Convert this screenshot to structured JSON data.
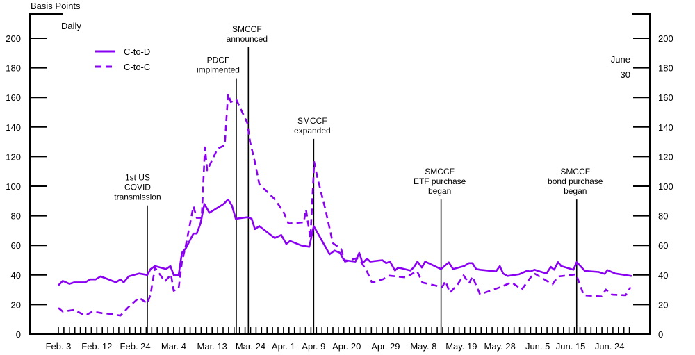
{
  "chart_data": {
    "type": "line",
    "ylabel": "Basis Points",
    "subtitle": "Daily",
    "corner_note": [
      "June",
      "30"
    ],
    "x_unit": "trading days since Feb. 3",
    "xlim": [
      0,
      104
    ],
    "ylim": [
      0,
      200
    ],
    "yticks": [
      0,
      20,
      40,
      60,
      80,
      100,
      120,
      140,
      160,
      180,
      200
    ],
    "grid": false,
    "legend_position": "top-left",
    "xtick_labels": [
      {
        "label": "Feb. 3",
        "x": 0
      },
      {
        "label": "Feb. 12",
        "x": 7
      },
      {
        "label": "Feb. 24",
        "x": 14
      },
      {
        "label": "Mar. 4",
        "x": 21
      },
      {
        "label": "Mar. 13",
        "x": 28
      },
      {
        "label": "Mar. 24",
        "x": 35
      },
      {
        "label": "Apr. 1",
        "x": 41
      },
      {
        "label": "Apr. 9",
        "x": 46.5
      },
      {
        "label": "Apr. 20",
        "x": 52.5
      },
      {
        "label": "Apr. 29",
        "x": 59.6
      },
      {
        "label": "May. 8",
        "x": 66.5
      },
      {
        "label": "May. 19",
        "x": 73.4
      },
      {
        "label": "May. 28",
        "x": 80.4
      },
      {
        "label": "Jun. 5",
        "x": 87.3
      },
      {
        "label": "Jun. 15",
        "x": 93.3
      },
      {
        "label": "Jun. 24",
        "x": 100.4
      }
    ],
    "minor_tick_count": 105,
    "colors": {
      "series": "#8A00F0",
      "axis": "#000000"
    },
    "series": [
      {
        "name": "C-to-D",
        "style": "solid",
        "points": [
          [
            0,
            33
          ],
          [
            0.8,
            36
          ],
          [
            2.0,
            34
          ],
          [
            2.9,
            35
          ],
          [
            4.9,
            35
          ],
          [
            5.8,
            37
          ],
          [
            6.8,
            37
          ],
          [
            7.7,
            39
          ],
          [
            10.5,
            35
          ],
          [
            11.3,
            37
          ],
          [
            11.9,
            35
          ],
          [
            12.8,
            39
          ],
          [
            14.7,
            41
          ],
          [
            16.2,
            40
          ],
          [
            16.8,
            44
          ],
          [
            17.6,
            46
          ],
          [
            19.6,
            44
          ],
          [
            20.4,
            46
          ],
          [
            21.0,
            40
          ],
          [
            21.9,
            40
          ],
          [
            22.5,
            55
          ],
          [
            23.2,
            58
          ],
          [
            24.6,
            68
          ],
          [
            25.2,
            68
          ],
          [
            25.9,
            75
          ],
          [
            26.6,
            88
          ],
          [
            27.5,
            82
          ],
          [
            30.1,
            88
          ],
          [
            30.9,
            91
          ],
          [
            31.6,
            87
          ],
          [
            32.3,
            78
          ],
          [
            34.4,
            79
          ],
          [
            35.2,
            78
          ],
          [
            35.8,
            71
          ],
          [
            36.6,
            73
          ],
          [
            39.4,
            65
          ],
          [
            40.6,
            67
          ],
          [
            41.5,
            61
          ],
          [
            42.2,
            63
          ],
          [
            44.2,
            60
          ],
          [
            45.7,
            59
          ],
          [
            46.5,
            73
          ],
          [
            49.4,
            54
          ],
          [
            50.3,
            56.5
          ],
          [
            51.3,
            55
          ],
          [
            52.0,
            50
          ],
          [
            54.1,
            49
          ],
          [
            54.8,
            55
          ],
          [
            55.4,
            48
          ],
          [
            56.2,
            51
          ],
          [
            56.8,
            49
          ],
          [
            59.0,
            50
          ],
          [
            59.7,
            48
          ],
          [
            60.4,
            49
          ],
          [
            61.3,
            43
          ],
          [
            61.9,
            45
          ],
          [
            64.1,
            43
          ],
          [
            64.7,
            45
          ],
          [
            65.4,
            49
          ],
          [
            66.2,
            45
          ],
          [
            66.8,
            49
          ],
          [
            69.7,
            44
          ],
          [
            71.1,
            48.5
          ],
          [
            71.9,
            44
          ],
          [
            73.9,
            46
          ],
          [
            74.8,
            48
          ],
          [
            75.4,
            48
          ],
          [
            76.1,
            44
          ],
          [
            76.8,
            43.5
          ],
          [
            79.7,
            42.4
          ],
          [
            80.4,
            46
          ],
          [
            81.0,
            41
          ],
          [
            81.8,
            39.3
          ],
          [
            83.9,
            40.4
          ],
          [
            85.3,
            42.7
          ],
          [
            86.0,
            42.4
          ],
          [
            86.7,
            43.5
          ],
          [
            88.9,
            41
          ],
          [
            89.7,
            45.5
          ],
          [
            90.3,
            43.5
          ],
          [
            91.0,
            48.7
          ],
          [
            91.6,
            46
          ],
          [
            93.8,
            43.5
          ],
          [
            94.4,
            48.7
          ],
          [
            95.9,
            42.7
          ],
          [
            98.4,
            42
          ],
          [
            99.5,
            40.7
          ],
          [
            100.0,
            43.3
          ],
          [
            101.4,
            41
          ],
          [
            104.4,
            39.3
          ]
        ]
      },
      {
        "name": "C-to-C",
        "style": "dashed",
        "points": [
          [
            0,
            17.7
          ],
          [
            0.8,
            15.3
          ],
          [
            2.9,
            16.4
          ],
          [
            4.9,
            12.6
          ],
          [
            6.2,
            15.3
          ],
          [
            8.0,
            14.2
          ],
          [
            9.4,
            13.7
          ],
          [
            11.3,
            12.6
          ],
          [
            12.8,
            18.4
          ],
          [
            14.7,
            24.7
          ],
          [
            16.2,
            20.8
          ],
          [
            16.8,
            27
          ],
          [
            17.6,
            45
          ],
          [
            19.4,
            35.6
          ],
          [
            20.5,
            40.3
          ],
          [
            21.0,
            29.3
          ],
          [
            21.9,
            31
          ],
          [
            22.5,
            48.9
          ],
          [
            23.2,
            59.8
          ],
          [
            24.6,
            86.4
          ],
          [
            25.2,
            78.6
          ],
          [
            26.1,
            78.6
          ],
          [
            26.7,
            126.3
          ],
          [
            27.1,
            110.7
          ],
          [
            29.0,
            125.4
          ],
          [
            30.3,
            127.7
          ],
          [
            30.9,
            162.4
          ],
          [
            31.4,
            156.9
          ],
          [
            32.4,
            158.5
          ],
          [
            34.4,
            142.8
          ],
          [
            34.9,
            130.3
          ],
          [
            35.8,
            116.2
          ],
          [
            36.6,
            101.4
          ],
          [
            39.4,
            91.2
          ],
          [
            41.0,
            82.6
          ],
          [
            41.9,
            74.8
          ],
          [
            44.7,
            75.6
          ],
          [
            45.1,
            84.2
          ],
          [
            45.9,
            64.7
          ],
          [
            46.6,
            116.3
          ],
          [
            47.2,
            105.3
          ],
          [
            48.6,
            84.9
          ],
          [
            50.0,
            61.5
          ],
          [
            51.5,
            57.5
          ],
          [
            52.2,
            49
          ],
          [
            54.3,
            51.3
          ],
          [
            55.1,
            49
          ],
          [
            56.2,
            42.4
          ],
          [
            57.1,
            34.9
          ],
          [
            59.2,
            37.2
          ],
          [
            60.1,
            39.6
          ],
          [
            63.3,
            38.3
          ],
          [
            65.3,
            42.7
          ],
          [
            66.3,
            34.9
          ],
          [
            69.9,
            31.8
          ],
          [
            70.5,
            35.8
          ],
          [
            71.3,
            28
          ],
          [
            72.7,
            33.5
          ],
          [
            73.8,
            39.7
          ],
          [
            74.8,
            34.3
          ],
          [
            75.4,
            38.9
          ],
          [
            76.8,
            26.9
          ],
          [
            80.6,
            31.9
          ],
          [
            82.5,
            35
          ],
          [
            84.4,
            30.3
          ],
          [
            86.6,
            41.2
          ],
          [
            90.0,
            33.7
          ],
          [
            91.0,
            38.9
          ],
          [
            94.3,
            40.4
          ],
          [
            95.7,
            26.3
          ],
          [
            99.0,
            25.5
          ],
          [
            99.7,
            30.2
          ],
          [
            100.9,
            26.7
          ],
          [
            103.3,
            26.3
          ],
          [
            104.2,
            31.7
          ]
        ]
      }
    ],
    "events": [
      {
        "lines": [
          "1st US",
          "COVID",
          "transmission"
        ],
        "x": 16.2,
        "line_top": 87
      },
      {
        "lines": [
          "PDCF",
          "implmented"
        ],
        "x": 32.4,
        "line_top": 173
      },
      {
        "lines": [
          "SMCCF",
          "announced"
        ],
        "x": 34.6,
        "line_top": 194
      },
      {
        "lines": [
          "SMCCF",
          "expanded"
        ],
        "x": 46.5,
        "line_top": 132
      },
      {
        "lines": [
          "SMCCF",
          "ETF purchase",
          "began"
        ],
        "x": 69.7,
        "line_top": 91
      },
      {
        "lines": [
          "SMCCF",
          "bond purchase",
          "began"
        ],
        "x": 94.4,
        "line_top": 91
      }
    ]
  }
}
